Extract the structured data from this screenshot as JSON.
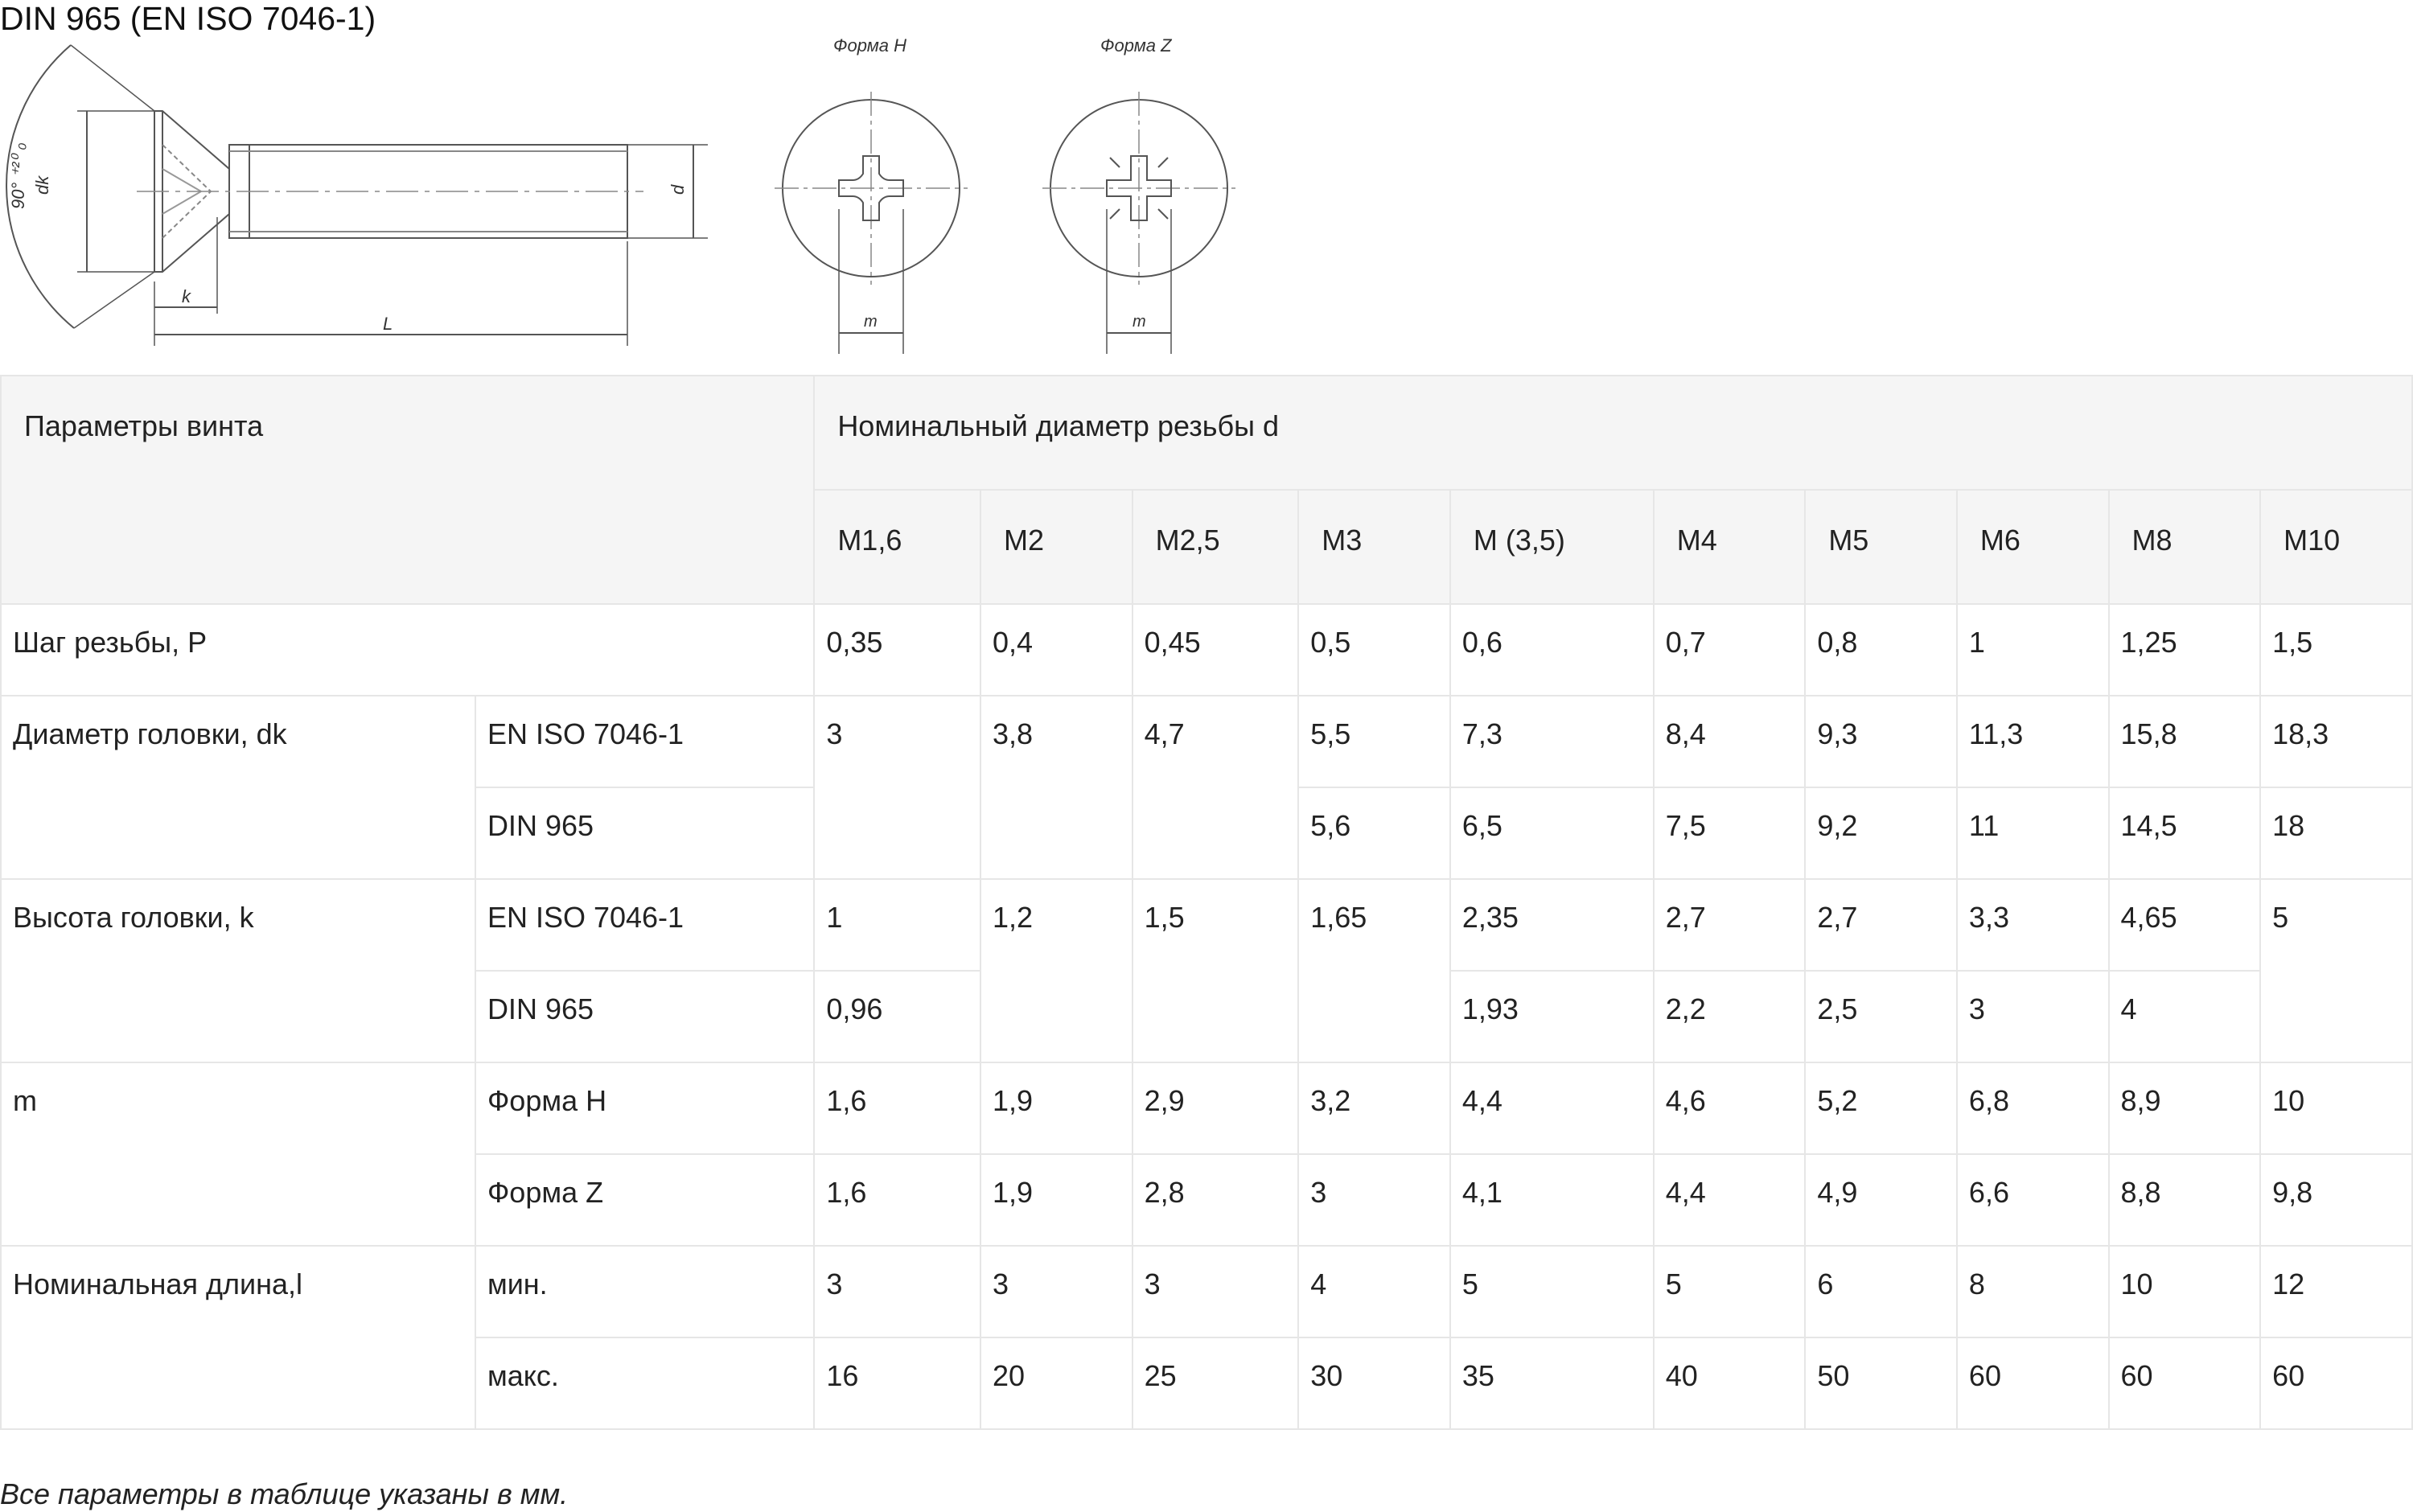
{
  "title": "DIN 965 (EN ISO 7046-1)",
  "drawing": {
    "form_h_label": "Форма H",
    "form_z_label": "Форма Z",
    "dim_angle": "90° ⁺²⁰ ₀",
    "dim_dk": "dk",
    "dim_k": "k",
    "dim_l": "L",
    "dim_d": "d",
    "dim_m_h": "m",
    "dim_m_z": "m"
  },
  "table": {
    "header_params": "Параметры винта",
    "header_diameter": "Номинальный диаметр резьбы d",
    "sizes": [
      "M1,6",
      "M2",
      "M2,5",
      "M3",
      "M (3,5)",
      "M4",
      "M5",
      "M6",
      "M8",
      "M10"
    ],
    "pitch": {
      "label": "Шаг резьбы, P",
      "values": [
        "0,35",
        "0,4",
        "0,45",
        "0,5",
        "0,6",
        "0,7",
        "0,8",
        "1",
        "1,25",
        "1,5"
      ]
    },
    "head_diameter": {
      "label": "Диаметр головки, dk",
      "iso_label": "EN ISO 7046-1",
      "din_label": "DIN 965",
      "iso_values": [
        "3",
        "3,8",
        "4,7",
        "5,5",
        "7,3",
        "8,4",
        "9,3",
        "11,3",
        "15,8",
        "18,3"
      ],
      "din_values": [
        "5,6",
        "6,5",
        "7,5",
        "9,2",
        "11",
        "14,5",
        "18"
      ]
    },
    "head_height": {
      "label": "Высота головки, k",
      "iso_label": "EN ISO 7046-1",
      "din_label": "DIN 965",
      "iso_values": [
        "1",
        "1,2",
        "1,5",
        "1,65",
        "2,35",
        "2,7",
        "2,7",
        "3,3",
        "4,65",
        "5"
      ],
      "din_values": [
        "0,96",
        "1,93",
        "2,2",
        "2,5",
        "3",
        "4"
      ]
    },
    "m": {
      "label": "m",
      "form_h_label": "Форма H",
      "form_z_label": "Форма Z",
      "form_h_values": [
        "1,6",
        "1,9",
        "2,9",
        "3,2",
        "4,4",
        "4,6",
        "5,2",
        "6,8",
        "8,9",
        "10"
      ],
      "form_z_values": [
        "1,6",
        "1,9",
        "2,8",
        "3",
        "4,1",
        "4,4",
        "4,9",
        "6,6",
        "8,8",
        "9,8"
      ]
    },
    "length": {
      "label": "Номинальная длина,l",
      "min_label": "мин.",
      "max_label": "макс.",
      "min_values": [
        "3",
        "3",
        "3",
        "4",
        "5",
        "5",
        "6",
        "8",
        "10",
        "12"
      ],
      "max_values": [
        "16",
        "20",
        "25",
        "30",
        "35",
        "40",
        "50",
        "60",
        "60",
        "60"
      ]
    }
  },
  "footnote": "Все параметры в таблице указаны в мм."
}
